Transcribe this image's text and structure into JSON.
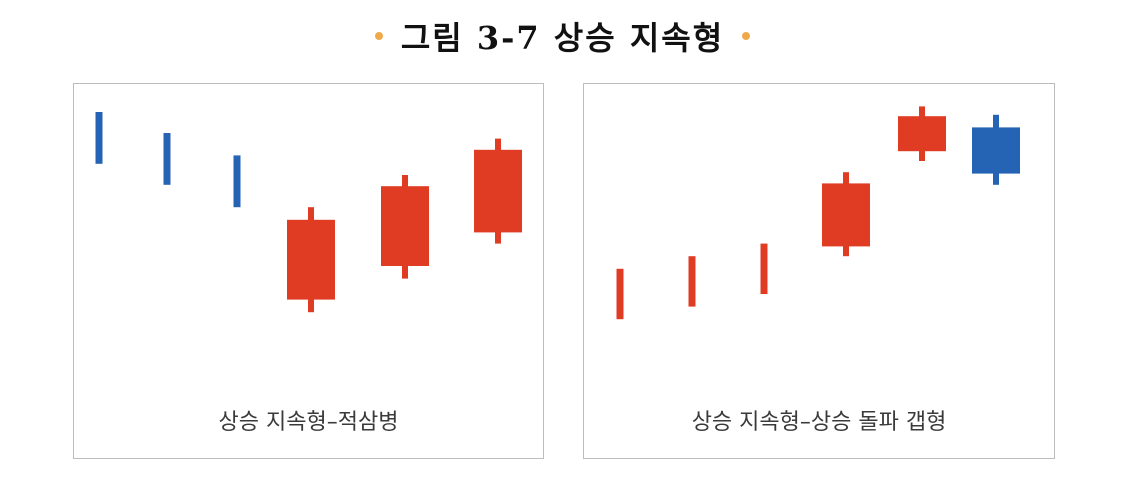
{
  "title": "그림 3-7 상승 지속형",
  "colors": {
    "up": "#e03c24",
    "down": "#2563b4",
    "title_dot": "#f0a94a",
    "border": "#bdbdbd"
  },
  "chart_data": [
    {
      "type": "candlestick",
      "title": "상승 지속형–적삼병",
      "ylim": [
        0,
        100
      ],
      "candles": [
        {
          "direction": "down",
          "open": 95.0,
          "close": 76.5,
          "high": 95.0,
          "low": 76.5
        },
        {
          "direction": "down",
          "open": 87.5,
          "close": 69.0,
          "high": 87.5,
          "low": 69.0
        },
        {
          "direction": "down",
          "open": 79.5,
          "close": 61.0,
          "high": 79.5,
          "low": 61.0
        },
        {
          "direction": "up",
          "open": 28.0,
          "close": 56.5,
          "high": 61.0,
          "low": 23.5
        },
        {
          "direction": "up",
          "open": 40.0,
          "close": 68.5,
          "high": 72.5,
          "low": 35.5
        },
        {
          "direction": "up",
          "open": 52.0,
          "close": 81.5,
          "high": 85.5,
          "low": 48.0
        }
      ]
    },
    {
      "type": "candlestick",
      "title": "상승 지속형–상승 돌파 갭형",
      "ylim": [
        0,
        100
      ],
      "candles": [
        {
          "direction": "up",
          "open": 21.0,
          "close": 39.0,
          "high": 39.0,
          "low": 21.0
        },
        {
          "direction": "up",
          "open": 25.5,
          "close": 43.5,
          "high": 43.5,
          "low": 25.5
        },
        {
          "direction": "up",
          "open": 30.0,
          "close": 48.0,
          "high": 48.0,
          "low": 30.0
        },
        {
          "direction": "up",
          "open": 47.0,
          "close": 69.5,
          "high": 73.5,
          "low": 43.5
        },
        {
          "direction": "up",
          "open": 81.0,
          "close": 93.5,
          "high": 97.0,
          "low": 77.5
        },
        {
          "direction": "down",
          "open": 89.5,
          "close": 73.0,
          "high": 94.0,
          "low": 69.0
        }
      ]
    }
  ]
}
